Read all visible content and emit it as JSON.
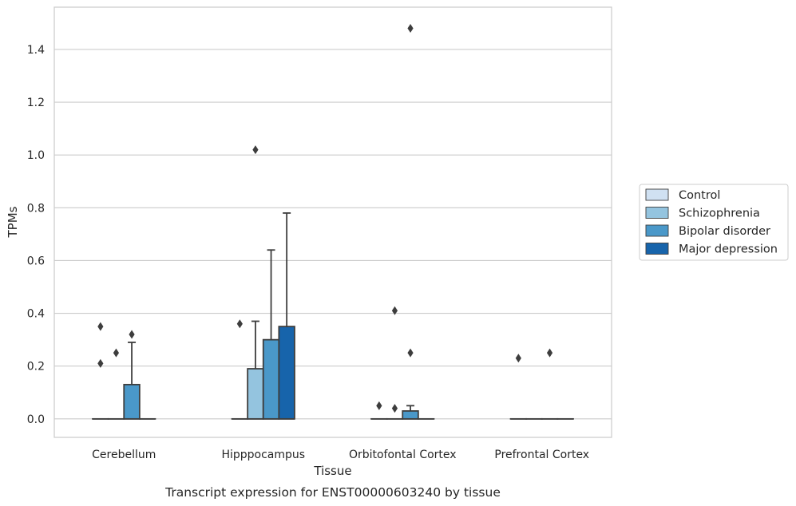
{
  "chart_data": {
    "type": "box",
    "title": "",
    "caption": "Transcript expression for ENST00000603240 by tissue",
    "xlabel": "Tissue",
    "ylabel": "TPMs",
    "ylim": [
      -0.07,
      1.56
    ],
    "yticks": [
      0.0,
      0.2,
      0.4,
      0.6,
      0.8,
      1.0,
      1.2,
      1.4
    ],
    "ytick_labels": [
      "0.0",
      "0.2",
      "0.4",
      "0.6",
      "0.8",
      "1.0",
      "1.2",
      "1.4"
    ],
    "grid": true,
    "legend_position": "right",
    "categories": [
      "Cerebellum",
      "Hipppocampus",
      "Orbitofontal Cortex",
      "Prefrontal Cortex"
    ],
    "series": [
      {
        "name": "Control",
        "color": "#d0e1f2",
        "boxes": [
          {
            "q1": 0,
            "median": 0,
            "q3": 0,
            "whisker_low": 0,
            "whisker_high": 0,
            "outliers": [
              0.21,
              0.35
            ]
          },
          {
            "q1": 0,
            "median": 0,
            "q3": 0,
            "whisker_low": 0,
            "whisker_high": 0,
            "outliers": [
              0.36
            ]
          },
          {
            "q1": 0,
            "median": 0,
            "q3": 0,
            "whisker_low": 0,
            "whisker_high": 0,
            "outliers": [
              0.05
            ]
          },
          {
            "q1": 0,
            "median": 0,
            "q3": 0,
            "whisker_low": 0,
            "whisker_high": 0,
            "outliers": [
              0.23
            ]
          }
        ]
      },
      {
        "name": "Schizophrenia",
        "color": "#94c4df",
        "boxes": [
          {
            "q1": 0,
            "median": 0,
            "q3": 0,
            "whisker_low": 0,
            "whisker_high": 0,
            "outliers": [
              0.25
            ]
          },
          {
            "q1": 0,
            "median": 0,
            "q3": 0.19,
            "whisker_low": 0,
            "whisker_high": 0.37,
            "outliers": [
              1.02
            ]
          },
          {
            "q1": 0,
            "median": 0,
            "q3": 0,
            "whisker_low": 0,
            "whisker_high": 0,
            "outliers": [
              0.04,
              0.41
            ]
          },
          {
            "q1": 0,
            "median": 0,
            "q3": 0,
            "whisker_low": 0,
            "whisker_high": 0,
            "outliers": []
          }
        ]
      },
      {
        "name": "Bipolar disorder",
        "color": "#4a98c9",
        "boxes": [
          {
            "q1": 0,
            "median": 0,
            "q3": 0.13,
            "whisker_low": 0,
            "whisker_high": 0.29,
            "outliers": [
              0.32
            ]
          },
          {
            "q1": 0,
            "median": 0,
            "q3": 0.3,
            "whisker_low": 0,
            "whisker_high": 0.64,
            "outliers": []
          },
          {
            "q1": 0,
            "median": 0,
            "q3": 0.03,
            "whisker_low": 0,
            "whisker_high": 0.05,
            "outliers": [
              0.25,
              1.48
            ]
          },
          {
            "q1": 0,
            "median": 0,
            "q3": 0,
            "whisker_low": 0,
            "whisker_high": 0,
            "outliers": [
              0.25
            ]
          }
        ]
      },
      {
        "name": "Major depression",
        "color": "#1764ab",
        "boxes": [
          {
            "q1": 0,
            "median": 0,
            "q3": 0,
            "whisker_low": 0,
            "whisker_high": 0,
            "outliers": []
          },
          {
            "q1": 0,
            "median": 0,
            "q3": 0.35,
            "whisker_low": 0,
            "whisker_high": 0.78,
            "outliers": []
          },
          {
            "q1": 0,
            "median": 0,
            "q3": 0,
            "whisker_low": 0,
            "whisker_high": 0,
            "outliers": []
          },
          {
            "q1": 0,
            "median": 0,
            "q3": 0,
            "whisker_low": 0,
            "whisker_high": 0,
            "outliers": []
          }
        ]
      }
    ]
  }
}
